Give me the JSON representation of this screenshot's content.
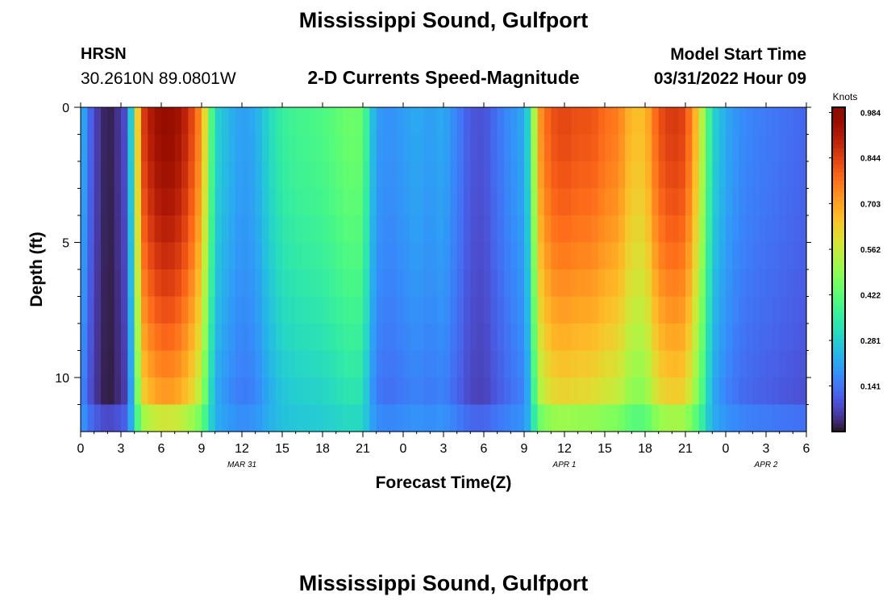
{
  "header": {
    "title": "Mississippi Sound, Gulfport",
    "station_id": "HRSN",
    "coords": "30.2610N  89.0801W",
    "subtitle": "2-D Currents Speed-Magnitude",
    "model_start_label": "Model Start Time",
    "model_start_value": "03/31/2022 Hour 09",
    "bottom_title": "Mississippi Sound, Gulfport"
  },
  "chart_data": {
    "type": "heatmap",
    "title": "2-D Currents Speed-Magnitude",
    "xlabel": "Forecast Time(Z)",
    "ylabel": "Depth (ft)",
    "x_range_hours": [
      0,
      54
    ],
    "y_range_ft": [
      0,
      12
    ],
    "y_inverted": true,
    "x_tick_labels": [
      "0",
      "3",
      "6",
      "9",
      "12",
      "15",
      "18",
      "21",
      "0",
      "3",
      "6",
      "9",
      "12",
      "15",
      "18",
      "21",
      "0",
      "3",
      "6"
    ],
    "y_ticks": [
      0,
      5,
      10
    ],
    "date_labels": [
      {
        "text": "MAR 31",
        "hour": 12
      },
      {
        "text": "APR 1",
        "hour": 36
      },
      {
        "text": "APR 2",
        "hour": 51
      }
    ],
    "colorbar": {
      "label": "Knots",
      "min": 0,
      "max": 1.0,
      "tick_labels": [
        "0.984",
        "0.844",
        "0.703",
        "0.562",
        "0.422",
        "0.281",
        "0.141"
      ],
      "tick_values": [
        0.984,
        0.844,
        0.703,
        0.562,
        0.422,
        0.281,
        0.141
      ],
      "colormap": "turbo"
    },
    "time_profile_knots": [
      [
        0,
        0.26
      ],
      [
        0.5,
        0.15
      ],
      [
        1,
        0.08
      ],
      [
        1.5,
        0.04
      ],
      [
        2,
        0.01
      ],
      [
        2.5,
        0.03
      ],
      [
        3,
        0.06
      ],
      [
        3.5,
        0.1
      ],
      [
        4,
        0.45
      ],
      [
        4.5,
        0.82
      ],
      [
        5,
        0.9
      ],
      [
        6,
        0.97
      ],
      [
        7,
        0.96
      ],
      [
        8,
        0.88
      ],
      [
        9,
        0.72
      ],
      [
        9.5,
        0.5
      ],
      [
        10,
        0.3
      ],
      [
        11,
        0.24
      ],
      [
        12,
        0.2
      ],
      [
        13,
        0.22
      ],
      [
        14,
        0.3
      ],
      [
        15,
        0.36
      ],
      [
        16,
        0.38
      ],
      [
        18,
        0.4
      ],
      [
        20,
        0.45
      ],
      [
        21,
        0.44
      ],
      [
        21.5,
        0.3
      ],
      [
        22,
        0.2
      ],
      [
        23,
        0.18
      ],
      [
        24,
        0.2
      ],
      [
        25,
        0.22
      ],
      [
        26,
        0.2
      ],
      [
        27,
        0.22
      ],
      [
        28,
        0.16
      ],
      [
        29,
        0.1
      ],
      [
        30,
        0.09
      ],
      [
        31,
        0.14
      ],
      [
        32,
        0.18
      ],
      [
        33,
        0.22
      ],
      [
        33.5,
        0.35
      ],
      [
        34,
        0.7
      ],
      [
        35,
        0.82
      ],
      [
        36,
        0.84
      ],
      [
        37,
        0.82
      ],
      [
        38,
        0.82
      ],
      [
        39,
        0.78
      ],
      [
        40,
        0.76
      ],
      [
        41,
        0.66
      ],
      [
        42,
        0.66
      ],
      [
        43,
        0.82
      ],
      [
        44,
        0.86
      ],
      [
        45,
        0.84
      ],
      [
        46,
        0.62
      ],
      [
        47,
        0.3
      ],
      [
        48,
        0.22
      ],
      [
        49,
        0.18
      ],
      [
        50,
        0.16
      ],
      [
        52,
        0.14
      ],
      [
        54,
        0.12
      ]
    ]
  }
}
